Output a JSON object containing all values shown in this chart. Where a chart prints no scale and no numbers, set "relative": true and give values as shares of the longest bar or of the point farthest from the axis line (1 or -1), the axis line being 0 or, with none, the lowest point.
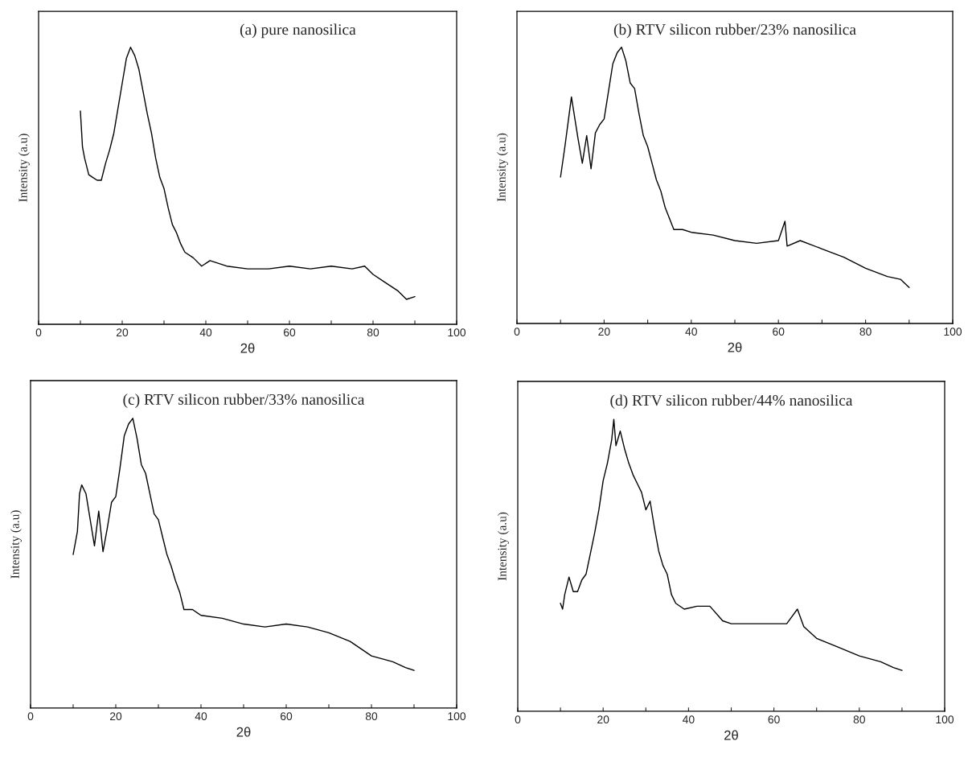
{
  "chart_data": [
    {
      "type": "line",
      "relative": true,
      "title": "(a) pure nanosilica",
      "xlabel": "2θ",
      "ylabel": "Intensity (a.u)",
      "xlim": [
        0,
        100
      ],
      "xticks": [
        0,
        {
          "value": 10,
          "label": null
        },
        20,
        {
          "value": 30,
          "label": null
        },
        40,
        {
          "value": 50,
          "label": null
        },
        60,
        {
          "value": 70,
          "label": null
        },
        80,
        {
          "value": 90,
          "label": null
        },
        100
      ],
      "grid": false,
      "tick_labels": "x",
      "series": [
        {
          "color": "#000000",
          "x": [
            10,
            10.5,
            11,
            12,
            13,
            14,
            15,
            16,
            17,
            18,
            19,
            20,
            21,
            22,
            23,
            24,
            25,
            26,
            27,
            28,
            29,
            30,
            31,
            32,
            33,
            34,
            35,
            37,
            39,
            41,
            45,
            50,
            55,
            60,
            65,
            70,
            75,
            78,
            80,
            83,
            86,
            88,
            90
          ],
          "values": [
            0.77,
            0.64,
            0.6,
            0.54,
            0.53,
            0.52,
            0.52,
            0.58,
            0.63,
            0.69,
            0.78,
            0.87,
            0.96,
            1.0,
            0.97,
            0.92,
            0.84,
            0.76,
            0.69,
            0.6,
            0.53,
            0.49,
            0.42,
            0.36,
            0.33,
            0.29,
            0.26,
            0.24,
            0.21,
            0.23,
            0.21,
            0.2,
            0.2,
            0.21,
            0.2,
            0.21,
            0.2,
            0.21,
            0.18,
            0.15,
            0.12,
            0.09,
            0.1
          ]
        }
      ]
    },
    {
      "type": "line",
      "relative": true,
      "title": "(b) RTV silicon rubber/23% nanosilica",
      "xlabel": "2θ",
      "ylabel": "Intensity (a.u)",
      "xlim": [
        0,
        100
      ],
      "xticks": [
        0,
        {
          "value": 10,
          "label": null
        },
        20,
        {
          "value": 30,
          "label": null
        },
        40,
        {
          "value": 50,
          "label": null
        },
        60,
        {
          "value": 70,
          "label": null
        },
        80,
        {
          "value": 90,
          "label": null
        },
        100
      ],
      "grid": false,
      "tick_labels": "x",
      "series": [
        {
          "color": "#000000",
          "x": [
            10,
            11,
            12,
            12.5,
            13,
            14,
            15,
            16,
            17,
            18,
            19,
            20,
            21,
            22,
            23,
            24,
            25,
            26,
            27,
            28,
            29,
            30,
            31,
            32,
            33,
            34,
            35,
            36,
            38,
            40,
            45,
            50,
            55,
            60,
            61.5,
            62,
            65,
            70,
            75,
            80,
            85,
            88,
            90
          ],
          "values": [
            0.53,
            0.64,
            0.76,
            0.82,
            0.77,
            0.67,
            0.58,
            0.68,
            0.56,
            0.69,
            0.72,
            0.74,
            0.84,
            0.94,
            0.98,
            1.0,
            0.95,
            0.87,
            0.85,
            0.76,
            0.68,
            0.64,
            0.58,
            0.52,
            0.48,
            0.42,
            0.38,
            0.34,
            0.34,
            0.33,
            0.32,
            0.3,
            0.29,
            0.3,
            0.37,
            0.28,
            0.3,
            0.27,
            0.24,
            0.2,
            0.17,
            0.16,
            0.13
          ]
        }
      ]
    },
    {
      "type": "line",
      "relative": true,
      "title": "(c) RTV silicon rubber/33% nanosilica",
      "xlabel": "2θ",
      "ylabel": "Intensity (a.u)",
      "xlim": [
        0,
        100
      ],
      "xticks": [
        0,
        {
          "value": 10,
          "label": null
        },
        20,
        {
          "value": 30,
          "label": null
        },
        40,
        {
          "value": 50,
          "label": null
        },
        60,
        {
          "value": 70,
          "label": null
        },
        80,
        {
          "value": 90,
          "label": null
        },
        100
      ],
      "grid": false,
      "tick_labels": "x",
      "series": [
        {
          "color": "#000000",
          "x": [
            10,
            11,
            11.5,
            12,
            13,
            14,
            15,
            16,
            17,
            18,
            19,
            20,
            21,
            22,
            23,
            24,
            25,
            26,
            27,
            28,
            29,
            30,
            31,
            32,
            33,
            34,
            35,
            36,
            38,
            40,
            45,
            50,
            55,
            60,
            65,
            70,
            75,
            80,
            85,
            88,
            90
          ],
          "values": [
            0.53,
            0.61,
            0.74,
            0.77,
            0.74,
            0.65,
            0.56,
            0.68,
            0.54,
            0.62,
            0.71,
            0.73,
            0.83,
            0.94,
            0.98,
            1.0,
            0.93,
            0.84,
            0.81,
            0.74,
            0.67,
            0.65,
            0.59,
            0.53,
            0.49,
            0.44,
            0.4,
            0.34,
            0.34,
            0.32,
            0.31,
            0.29,
            0.28,
            0.29,
            0.28,
            0.26,
            0.23,
            0.18,
            0.16,
            0.14,
            0.13
          ]
        }
      ]
    },
    {
      "type": "line",
      "relative": true,
      "title": "(d) RTV silicon rubber/44% nanosilica",
      "xlabel": "2θ",
      "ylabel": "Intensity (a.u)",
      "xlim": [
        0,
        100
      ],
      "xticks": [
        0,
        {
          "value": 10,
          "label": null
        },
        20,
        {
          "value": 30,
          "label": null
        },
        40,
        {
          "value": 50,
          "label": null
        },
        60,
        {
          "value": 70,
          "label": null
        },
        80,
        {
          "value": 90,
          "label": null
        },
        100
      ],
      "grid": false,
      "tick_labels": "x",
      "series": [
        {
          "color": "#000000",
          "x": [
            10,
            10.5,
            11,
            12,
            13,
            14,
            15,
            16,
            17,
            18,
            19,
            20,
            21,
            22,
            22.5,
            23,
            24,
            25,
            26,
            27,
            28,
            29,
            30,
            31,
            32,
            33,
            34,
            35,
            36,
            37,
            39,
            42,
            45,
            48,
            50,
            55,
            60,
            63,
            65.5,
            67,
            70,
            75,
            80,
            85,
            88,
            90
          ],
          "values": [
            0.37,
            0.35,
            0.4,
            0.46,
            0.41,
            0.41,
            0.45,
            0.47,
            0.54,
            0.61,
            0.69,
            0.79,
            0.85,
            0.93,
            1.0,
            0.91,
            0.96,
            0.9,
            0.85,
            0.81,
            0.78,
            0.75,
            0.69,
            0.72,
            0.63,
            0.55,
            0.5,
            0.47,
            0.4,
            0.37,
            0.35,
            0.36,
            0.36,
            0.31,
            0.3,
            0.3,
            0.3,
            0.3,
            0.35,
            0.29,
            0.25,
            0.22,
            0.19,
            0.17,
            0.15,
            0.14
          ]
        }
      ]
    }
  ]
}
